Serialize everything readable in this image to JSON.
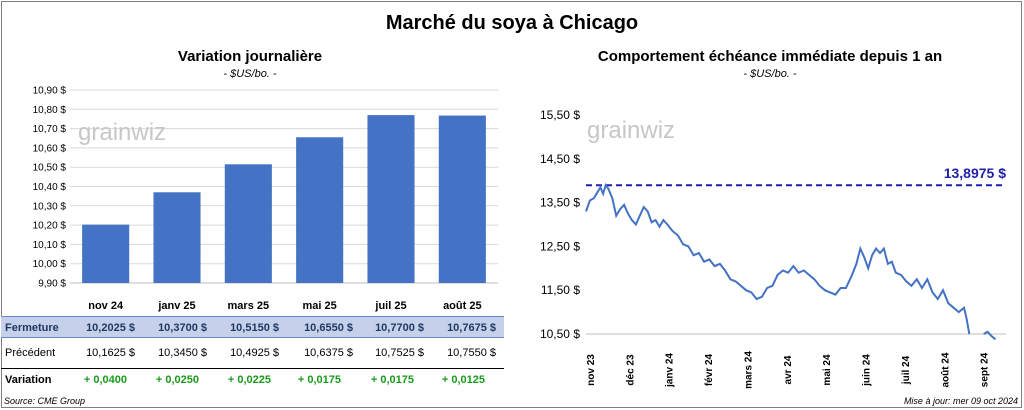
{
  "title": "Marché du soya à Chicago",
  "left_title": "Variation journalière",
  "left_unit": "- $US/bo. -",
  "right_title": "Comportement échéance immédiate depuis 1 an",
  "right_unit": "- $US/bo. -",
  "watermark": "grainwiz",
  "table": {
    "fermeture_label": "Fermeture",
    "precedent_label": "Précédent",
    "variation_label": "Variation",
    "fermeture": [
      "10,2025  $",
      "10,3700  $",
      "10,5150  $",
      "10,6550  $",
      "10,7700  $",
      "10,7675  $"
    ],
    "precedent": [
      "10,1625  $",
      "10,3450  $",
      "10,4925  $",
      "10,6375  $",
      "10,7525  $",
      "10,7550  $"
    ],
    "variation": [
      "+ 0,0400",
      "+ 0,0250",
      "+ 0,0225",
      "+ 0,0175",
      "+ 0,0175",
      "+ 0,0125"
    ]
  },
  "source": "Source: CME Group",
  "updated": "Mise à jour: mer 09 oct 2024",
  "chart_data": [
    {
      "type": "bar",
      "title": "Variation journalière",
      "categories": [
        "nov 24",
        "janv 25",
        "mars 25",
        "mai 25",
        "juil 25",
        "août 25"
      ],
      "values": [
        10.2025,
        10.37,
        10.515,
        10.655,
        10.77,
        10.7675
      ],
      "ylim": [
        9.9,
        10.9
      ],
      "yticks": [
        "9,90 $",
        "10,00 $",
        "10,10 $",
        "10,20 $",
        "10,30 $",
        "10,40 $",
        "10,50 $",
        "10,60 $",
        "10,70 $",
        "10,80 $",
        "10,90 $"
      ],
      "ytick_values": [
        9.9,
        10.0,
        10.1,
        10.2,
        10.3,
        10.4,
        10.5,
        10.6,
        10.7,
        10.8,
        10.9
      ],
      "color": "#4472c4",
      "grid": true
    },
    {
      "type": "line",
      "title": "Comportement échéance immédiate depuis 1 an",
      "x_labels": [
        "nov 23",
        "déc 23",
        "janv 24",
        "févr 24",
        "mars 24",
        "avr 24",
        "mai 24",
        "juin 24",
        "juil 24",
        "août 24",
        "sept 24"
      ],
      "ylim": [
        10.5,
        15.5
      ],
      "yticks": [
        "10,50 $",
        "11,50 $",
        "12,50 $",
        "13,50 $",
        "14,50 $",
        "15,50 $"
      ],
      "ytick_values": [
        10.5,
        11.5,
        12.5,
        13.5,
        14.5,
        15.5
      ],
      "max_line": 13.8975,
      "max_label": "13,8975  $",
      "line_color": "#4472c4",
      "max_color": "#1f1fa8",
      "series_points": [
        [
          0,
          13.3
        ],
        [
          0.3,
          13.55
        ],
        [
          0.6,
          13.6
        ],
        [
          0.9,
          13.75
        ],
        [
          1.1,
          13.85
        ],
        [
          1.3,
          13.7
        ],
        [
          1.5,
          13.9
        ],
        [
          1.7,
          13.82
        ],
        [
          2.0,
          13.6
        ],
        [
          2.3,
          13.2
        ],
        [
          2.6,
          13.35
        ],
        [
          2.9,
          13.45
        ],
        [
          3.2,
          13.25
        ],
        [
          3.5,
          13.1
        ],
        [
          3.8,
          13.0
        ],
        [
          4.1,
          13.2
        ],
        [
          4.4,
          13.4
        ],
        [
          4.7,
          13.3
        ],
        [
          5.0,
          13.05
        ],
        [
          5.3,
          13.1
        ],
        [
          5.6,
          12.95
        ],
        [
          5.9,
          13.1
        ],
        [
          6.2,
          13.0
        ],
        [
          6.6,
          12.85
        ],
        [
          7.0,
          12.75
        ],
        [
          7.4,
          12.55
        ],
        [
          7.8,
          12.5
        ],
        [
          8.2,
          12.3
        ],
        [
          8.6,
          12.35
        ],
        [
          9.0,
          12.15
        ],
        [
          9.4,
          12.2
        ],
        [
          9.8,
          12.05
        ],
        [
          10.2,
          12.1
        ],
        [
          10.6,
          11.95
        ],
        [
          11.0,
          11.75
        ],
        [
          11.4,
          11.7
        ],
        [
          11.8,
          11.6
        ],
        [
          12.2,
          11.5
        ],
        [
          12.6,
          11.45
        ],
        [
          13.0,
          11.3
        ],
        [
          13.4,
          11.35
        ],
        [
          13.8,
          11.55
        ],
        [
          14.2,
          11.6
        ],
        [
          14.6,
          11.85
        ],
        [
          15.0,
          11.95
        ],
        [
          15.4,
          11.9
        ],
        [
          15.8,
          12.05
        ],
        [
          16.2,
          11.9
        ],
        [
          16.6,
          11.95
        ],
        [
          17.0,
          11.85
        ],
        [
          17.4,
          11.75
        ],
        [
          17.8,
          11.6
        ],
        [
          18.2,
          11.5
        ],
        [
          18.6,
          11.45
        ],
        [
          19.0,
          11.4
        ],
        [
          19.4,
          11.55
        ],
        [
          19.8,
          11.55
        ],
        [
          20.2,
          11.8
        ],
        [
          20.6,
          12.1
        ],
        [
          20.9,
          12.45
        ],
        [
          21.2,
          12.25
        ],
        [
          21.5,
          12.0
        ],
        [
          21.8,
          12.3
        ],
        [
          22.1,
          12.45
        ],
        [
          22.4,
          12.35
        ],
        [
          22.7,
          12.45
        ],
        [
          23.0,
          12.1
        ],
        [
          23.3,
          12.15
        ],
        [
          23.6,
          11.9
        ],
        [
          24.0,
          11.85
        ],
        [
          24.4,
          11.7
        ],
        [
          24.8,
          11.6
        ],
        [
          25.2,
          11.75
        ],
        [
          25.6,
          11.55
        ],
        [
          26.0,
          11.75
        ],
        [
          26.4,
          11.45
        ],
        [
          26.8,
          11.3
        ],
        [
          27.2,
          11.5
        ],
        [
          27.6,
          11.2
        ],
        [
          28.0,
          11.1
        ],
        [
          28.4,
          11.0
        ],
        [
          28.8,
          11.1
        ],
        [
          29.0,
          10.85
        ],
        [
          29.2,
          10.5
        ],
        [
          30.3,
          10.5
        ],
        [
          30.6,
          10.55
        ],
        [
          30.9,
          10.45
        ],
        [
          31.2,
          10.38
        ]
      ]
    }
  ]
}
